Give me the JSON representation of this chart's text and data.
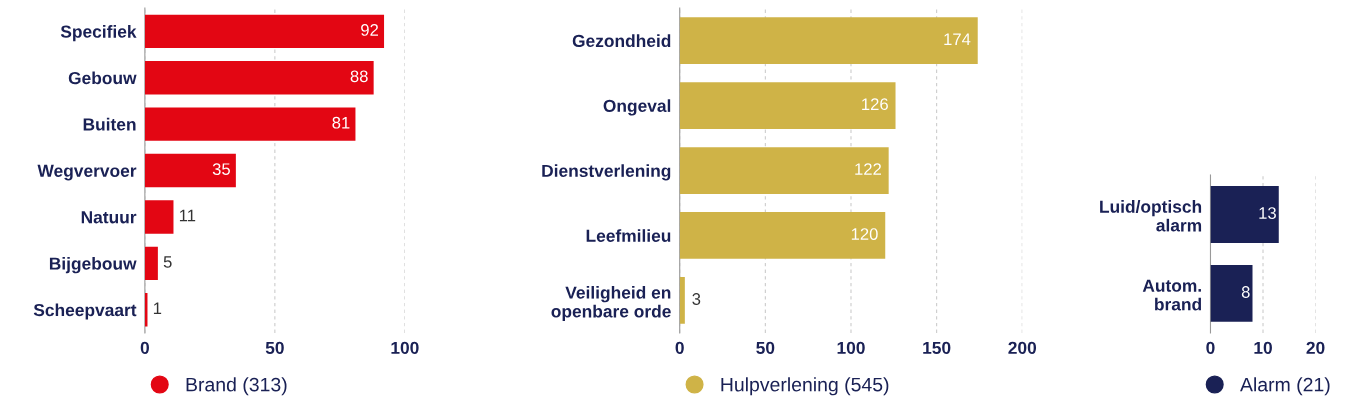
{
  "chart_data": [
    {
      "type": "bar",
      "orientation": "horizontal",
      "categories": [
        "Specifiek",
        "Gebouw",
        "Buiten",
        "Wegvervoer",
        "Natuur",
        "Bijgebouw",
        "Scheepvaart"
      ],
      "series": [
        {
          "name": "Brand (313)",
          "color": "#e30613",
          "values": [
            92,
            88,
            81,
            35,
            11,
            5,
            1
          ]
        }
      ],
      "xlim": [
        0,
        100
      ],
      "xticks": [
        0,
        50,
        100
      ],
      "grid": "x",
      "data_labels": true,
      "legend": "bottom left"
    },
    {
      "type": "bar",
      "orientation": "horizontal",
      "categories": [
        "Gezondheid",
        "Ongeval",
        "Dienstverlening",
        "Leefmilieu",
        "Veiligheid en\nopenbare orde"
      ],
      "series": [
        {
          "name": "Hulpverlening (545)",
          "color": "#cfb347",
          "values": [
            174,
            126,
            122,
            120,
            3
          ]
        }
      ],
      "xlim": [
        0,
        200
      ],
      "xticks": [
        0,
        50,
        100,
        150,
        200
      ],
      "grid": "x",
      "data_labels": true,
      "legend": "bottom left"
    },
    {
      "type": "bar",
      "orientation": "horizontal",
      "categories": [
        "Luid/optisch\nalarm",
        "Autom.\nbrand"
      ],
      "series": [
        {
          "name": "Alarm (21)",
          "color": "#1a2155",
          "values": [
            13,
            8
          ]
        }
      ],
      "xlim": [
        0,
        20
      ],
      "xticks": [
        0,
        10,
        20
      ],
      "grid": "x",
      "data_labels": true,
      "legend": "bottom"
    }
  ]
}
